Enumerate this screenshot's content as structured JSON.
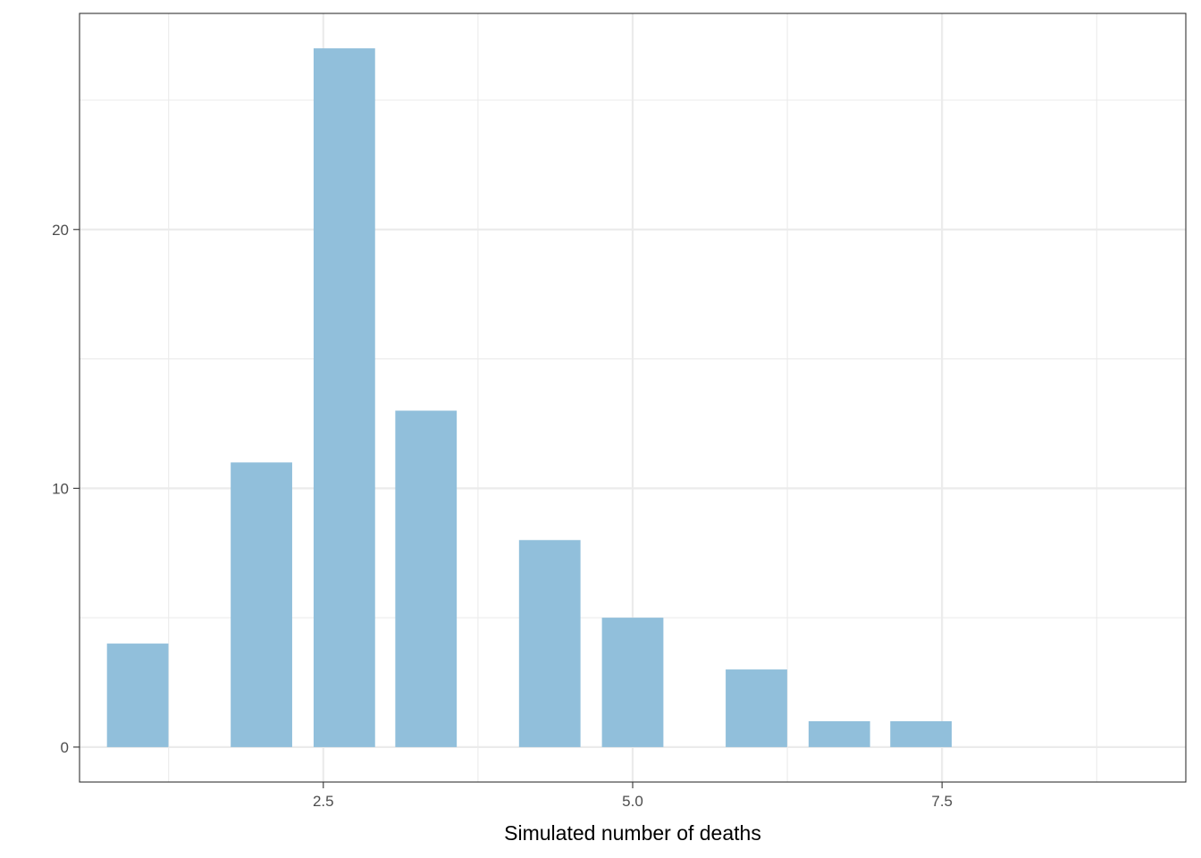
{
  "chart_data": {
    "type": "bar",
    "title": "",
    "xlabel": "Simulated number of deaths",
    "ylabel": "",
    "x": [
      1,
      2,
      2.67,
      3.33,
      4.33,
      5,
      6,
      6.67,
      7.33
    ],
    "values": [
      4,
      11,
      27,
      13,
      8,
      5,
      3,
      1,
      1
    ],
    "bar_color": "#91bfdb",
    "xlim": [
      0.53,
      9.47
    ],
    "ylim": [
      -1.35,
      28.35
    ],
    "x_ticks": [
      2.5,
      5.0,
      7.5
    ],
    "x_tick_labels": [
      "2.5",
      "5.0",
      "7.5"
    ],
    "y_ticks": [
      0,
      10,
      20
    ],
    "y_tick_labels": [
      "0",
      "10",
      "20"
    ],
    "grid": true,
    "theme": "bw"
  }
}
